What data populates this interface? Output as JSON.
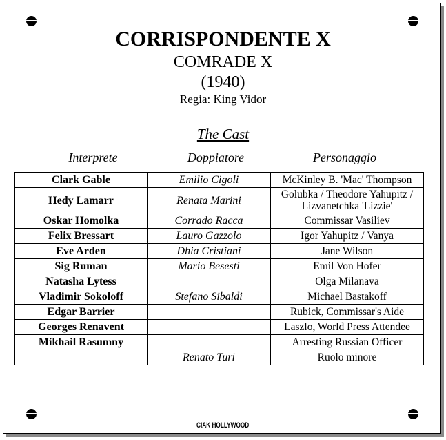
{
  "title": "CORRISPONDENTE X",
  "subtitle": "COMRADE X",
  "year": "(1940)",
  "director": "Regia: King Vidor",
  "cast_heading": "The Cast",
  "columns": [
    "Interprete",
    "Doppiatore",
    "Personaggio"
  ],
  "rows": [
    [
      "Clark Gable",
      "Emilio Cigoli",
      "McKinley B. 'Mac' Thompson"
    ],
    [
      "Hedy Lamarr",
      "Renata Marini",
      "Golubka / Theodore Yahupitz / Lizvanetchka 'Lizzie'"
    ],
    [
      "Oskar Homolka",
      "Corrado Racca",
      "Commissar Vasiliev"
    ],
    [
      "Felix Bressart",
      "Lauro Gazzolo",
      "Igor Yahupitz / Vanya"
    ],
    [
      "Eve Arden",
      "Dhia Cristiani",
      "Jane Wilson"
    ],
    [
      "Sig Ruman",
      "Mario Besesti",
      "Emil Von Hofer"
    ],
    [
      "Natasha Lytess",
      "",
      "Olga Milanava"
    ],
    [
      "Vladimir Sokoloff",
      "Stefano Sibaldi",
      "Michael Bastakoff"
    ],
    [
      "Edgar Barrier",
      "",
      "Rubick, Commissar's Aide"
    ],
    [
      "Georges Renavent",
      "",
      "Laszlo, World Press Attendee"
    ],
    [
      "Mikhail Rasumny",
      "",
      "Arresting Russian Officer"
    ],
    [
      "",
      "Renato Turi",
      "Ruolo minore"
    ]
  ],
  "logo": "CIAK HOLLYWOOD"
}
